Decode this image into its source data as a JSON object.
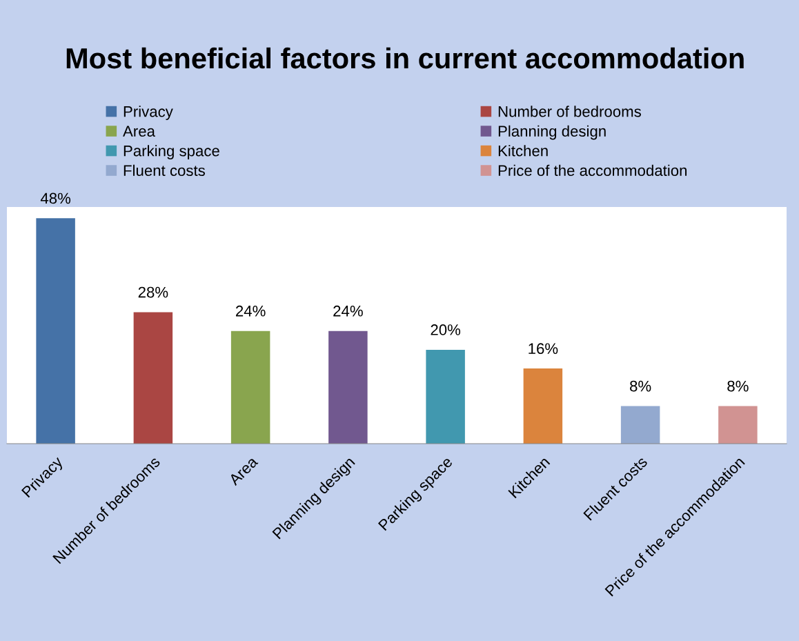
{
  "chart_data": {
    "type": "bar",
    "title": "Most beneficial factors in current accommodation",
    "categories": [
      "Privacy",
      "Number of bedrooms",
      "Area",
      "Planning design",
      "Parking space",
      "Kitchen",
      "Fluent costs",
      "Price of the accommodation"
    ],
    "series": [
      {
        "name": "Privacy",
        "color": "#4572a7",
        "values": [
          48,
          null,
          null,
          null,
          null,
          null,
          null,
          null
        ],
        "value_labels": [
          "48%",
          null,
          null,
          null,
          null,
          null,
          null,
          null
        ]
      },
      {
        "name": "Number of bedrooms",
        "color": "#aa4643",
        "values": [
          null,
          28,
          null,
          null,
          null,
          null,
          null,
          null
        ],
        "value_labels": [
          null,
          "28%",
          null,
          null,
          null,
          null,
          null,
          null
        ]
      },
      {
        "name": "Area",
        "color": "#89a54e",
        "values": [
          null,
          null,
          24,
          null,
          null,
          null,
          null,
          null
        ],
        "value_labels": [
          null,
          null,
          "24%",
          null,
          null,
          null,
          null,
          null
        ]
      },
      {
        "name": "Planning design",
        "color": "#71588f",
        "values": [
          null,
          null,
          null,
          24,
          null,
          null,
          null,
          null
        ],
        "value_labels": [
          null,
          null,
          null,
          "24%",
          null,
          null,
          null,
          null
        ]
      },
      {
        "name": "Parking space",
        "color": "#4198af",
        "values": [
          null,
          null,
          null,
          null,
          20,
          null,
          null,
          null
        ],
        "value_labels": [
          null,
          null,
          null,
          null,
          "20%",
          null,
          null,
          null
        ]
      },
      {
        "name": "Kitchen",
        "color": "#db843d",
        "values": [
          null,
          null,
          null,
          null,
          null,
          16,
          null,
          null
        ],
        "value_labels": [
          null,
          null,
          null,
          null,
          null,
          "16%",
          null,
          null
        ]
      },
      {
        "name": "Fluent costs",
        "color": "#93a9cf",
        "values": [
          null,
          null,
          null,
          null,
          null,
          null,
          8,
          null
        ],
        "value_labels": [
          null,
          null,
          null,
          null,
          null,
          null,
          "8%",
          null
        ]
      },
      {
        "name": "Price of the accommodation",
        "color": "#d19392",
        "values": [
          null,
          null,
          null,
          null,
          null,
          null,
          null,
          8
        ],
        "value_labels": [
          null,
          null,
          null,
          null,
          null,
          null,
          null,
          "8%"
        ]
      }
    ],
    "legend": "top",
    "grid": false
  }
}
